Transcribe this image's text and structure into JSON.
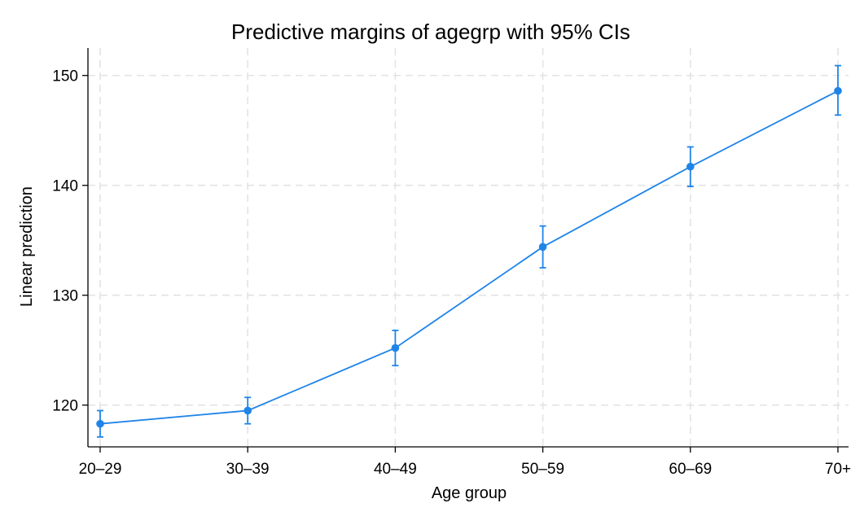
{
  "chart_data": {
    "type": "line",
    "title": "Predictive margins of agegrp with 95% CIs",
    "xlabel": "Age group",
    "ylabel": "Linear prediction",
    "categories": [
      "20–29",
      "30–39",
      "40–49",
      "50–59",
      "60–69",
      "70+"
    ],
    "series": [
      {
        "values": [
          118.3,
          119.5,
          125.2,
          134.4,
          141.7,
          148.6
        ],
        "ci_lower": [
          117.1,
          118.3,
          123.6,
          132.5,
          139.9,
          146.4
        ],
        "ci_upper": [
          119.5,
          120.7,
          126.8,
          136.3,
          143.5,
          150.9
        ],
        "color": "#1f84e8"
      }
    ],
    "yticks": [
      120,
      130,
      140,
      150
    ],
    "ylim": [
      116.2,
      152.5
    ],
    "grid": true,
    "legend": "none"
  }
}
